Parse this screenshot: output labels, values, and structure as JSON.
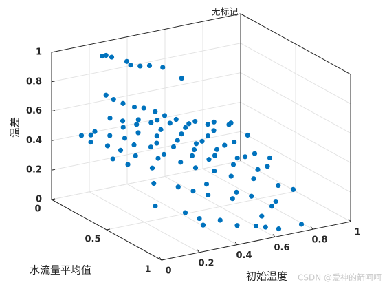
{
  "chart_data": {
    "type": "scatter3d",
    "title": "无标记",
    "xlabel": "初始温度",
    "ylabel": "水流量平均值",
    "zlabel": "温差",
    "watermark": "CSDN @爱神的箭呵呵",
    "xlim": [
      0,
      1
    ],
    "xticks": [
      0,
      0.2,
      0.4,
      0.6,
      0.8,
      1
    ],
    "ylim": [
      0,
      1
    ],
    "yticks": [
      0,
      0.5,
      1
    ],
    "zlim": [
      0,
      1
    ],
    "zticks": [
      0,
      0.2,
      0.4,
      0.6,
      0.8,
      1
    ],
    "grid": true,
    "color": "#0072bd",
    "x": [
      0.21,
      0.23,
      0.26,
      0.34,
      0.36,
      0.41,
      0.46,
      0.53,
      0.63,
      0.23,
      0.27,
      0.32,
      0.38,
      0.43,
      0.49,
      0.54,
      0.1,
      0.12,
      0.15,
      0.18,
      0.2,
      0.22,
      0.25,
      0.27,
      0.3,
      0.32,
      0.35,
      0.36,
      0.38,
      0.4,
      0.42,
      0.44,
      0.45,
      0.47,
      0.5,
      0.5,
      0.52,
      0.54,
      0.55,
      0.57,
      0.58,
      0.6,
      0.6,
      0.62,
      0.63,
      0.65,
      0.66,
      0.68,
      0.7,
      0.7,
      0.72,
      0.74,
      0.75,
      0.77,
      0.8,
      0.8,
      0.82,
      0.85,
      0.88,
      0.9,
      0.3,
      0.25,
      0.35,
      0.4,
      0.45,
      0.2,
      0.15,
      0.55,
      0.6,
      0.5,
      0.65,
      0.28,
      0.33,
      0.38,
      0.43,
      0.48,
      0.53,
      0.58,
      0.63,
      0.68,
      0.73,
      0.78,
      0.83,
      0.88,
      0.92,
      0.95,
      0.85,
      0.9,
      0.75,
      0.7,
      0.2,
      0.3,
      0.2,
      0.31,
      0.4,
      0.53,
      0.62,
      0.74,
      0.22,
      0.5,
      0.55,
      0.98
    ],
    "y": [
      0.1,
      0.1,
      0.1,
      0.1,
      0.1,
      0.1,
      0.1,
      0.1,
      0.1,
      0.1,
      0.1,
      0.1,
      0.1,
      0.1,
      0.1,
      0.1,
      0.1,
      0.15,
      0.1,
      0.2,
      0.05,
      0.25,
      0.1,
      0.3,
      0.15,
      0.2,
      0.05,
      0.35,
      0.25,
      0.1,
      0.3,
      0.2,
      0.4,
      0.15,
      0.25,
      0.45,
      0.1,
      0.35,
      0.2,
      0.5,
      0.3,
      0.15,
      0.4,
      0.25,
      0.55,
      0.1,
      0.35,
      0.2,
      0.45,
      0.3,
      0.6,
      0.15,
      0.4,
      0.25,
      0.5,
      0.1,
      0.35,
      0.2,
      0.45,
      0.3,
      0.4,
      0.5,
      0.55,
      0.6,
      0.65,
      0.35,
      0.3,
      0.7,
      0.65,
      0.55,
      0.7,
      0.05,
      0.08,
      0.12,
      0.05,
      0.08,
      0.05,
      0.08,
      0.05,
      0.08,
      0.05,
      0.08,
      0.05,
      0.1,
      0.05,
      0.15,
      0.6,
      0.65,
      0.75,
      0.8,
      0.6,
      0.7,
      1,
      1,
      1,
      1,
      1,
      1,
      1,
      1,
      1,
      0.3
    ],
    "z": [
      0.96,
      0.96,
      0.94,
      0.89,
      0.86,
      0.84,
      0.83,
      0.8,
      0.7,
      0.69,
      0.65,
      0.61,
      0.57,
      0.55,
      0.51,
      0.47,
      0.45,
      0.42,
      0.44,
      0.4,
      0.43,
      0.38,
      0.41,
      0.35,
      0.4,
      0.37,
      0.42,
      0.33,
      0.36,
      0.39,
      0.32,
      0.35,
      0.3,
      0.37,
      0.33,
      0.27,
      0.38,
      0.3,
      0.34,
      0.25,
      0.31,
      0.35,
      0.28,
      0.32,
      0.22,
      0.36,
      0.27,
      0.3,
      0.24,
      0.28,
      0.2,
      0.3,
      0.25,
      0.27,
      0.2,
      0.3,
      0.22,
      0.25,
      0.18,
      0.2,
      0.3,
      0.25,
      0.22,
      0.2,
      0.18,
      0.33,
      0.36,
      0.15,
      0.16,
      0.2,
      0.14,
      0.5,
      0.48,
      0.46,
      0.45,
      0.43,
      0.42,
      0.4,
      0.4,
      0.37,
      0.36,
      0.34,
      0.33,
      0.32,
      0.3,
      0.25,
      0.12,
      0.1,
      0.1,
      0.1,
      0.15,
      0.12,
      0.23,
      0.19,
      0.13,
      0.16,
      0.05,
      0.05,
      0.18,
      0.1,
      0.08,
      0.15
    ]
  }
}
